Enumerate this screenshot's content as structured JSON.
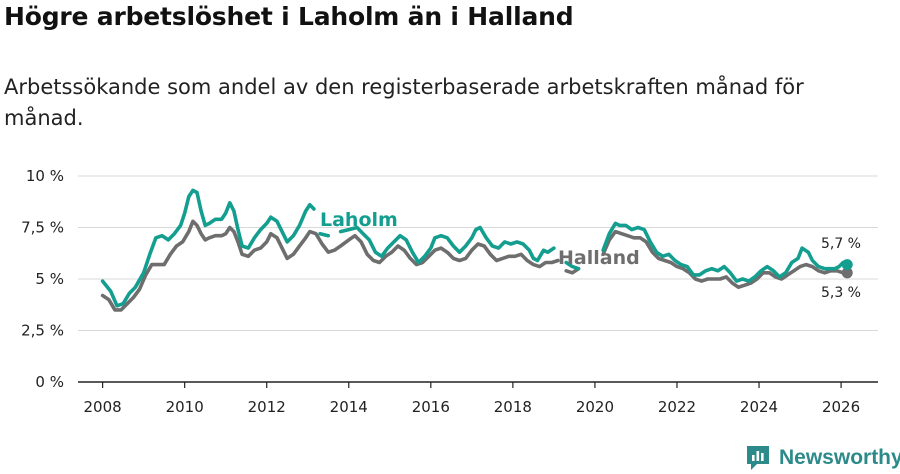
{
  "title": "Högre arbetslöshet i Laholm än i Halland",
  "subtitle": "Arbetssökande som andel av den registerbaserade arbetskraften månad för månad.",
  "brand": "Newsworthy",
  "colors": {
    "laholm": "#139e8f",
    "halland": "#6e6e6e",
    "grid": "#d9d9d9",
    "axis": "#222222",
    "brand": "#2d8a8a"
  },
  "chart_data": {
    "type": "line",
    "title": "Högre arbetslöshet i Laholm än i Halland",
    "xlabel": "",
    "ylabel": "",
    "xlim": [
      2007.4,
      2026.9
    ],
    "ylim": [
      0,
      10
    ],
    "x_ticks": [
      2008,
      2010,
      2012,
      2014,
      2016,
      2018,
      2020,
      2022,
      2024,
      2026
    ],
    "x_tick_labels": [
      "2008",
      "2010",
      "2012",
      "2014",
      "2016",
      "2018",
      "2020",
      "2022",
      "2024",
      "2026"
    ],
    "y_ticks": [
      0,
      2.5,
      5,
      7.5,
      10
    ],
    "y_tick_labels": [
      "0 %",
      "2,5 %",
      "5 %",
      "7,5 %",
      "10 %"
    ],
    "grid": true,
    "series": [
      {
        "name": "Laholm",
        "label": "Laholm",
        "points": [
          [
            2008.0,
            4.9
          ],
          [
            2008.2,
            4.4
          ],
          [
            2008.35,
            3.7
          ],
          [
            2008.5,
            3.8
          ],
          [
            2008.65,
            4.3
          ],
          [
            2008.8,
            4.6
          ],
          [
            2009.0,
            5.3
          ],
          [
            2009.15,
            6.2
          ],
          [
            2009.3,
            7.0
          ],
          [
            2009.45,
            7.1
          ],
          [
            2009.6,
            6.9
          ],
          [
            2009.75,
            7.2
          ],
          [
            2009.9,
            7.6
          ],
          [
            2010.0,
            8.2
          ],
          [
            2010.1,
            9.0
          ],
          [
            2010.2,
            9.3
          ],
          [
            2010.3,
            9.2
          ],
          [
            2010.4,
            8.3
          ],
          [
            2010.5,
            7.6
          ],
          [
            2010.6,
            7.7
          ],
          [
            2010.75,
            7.9
          ],
          [
            2010.9,
            7.9
          ],
          [
            2011.0,
            8.2
          ],
          [
            2011.1,
            8.7
          ],
          [
            2011.2,
            8.3
          ],
          [
            2011.3,
            7.4
          ],
          [
            2011.4,
            6.6
          ],
          [
            2011.55,
            6.5
          ],
          [
            2011.7,
            7.0
          ],
          [
            2011.85,
            7.4
          ],
          [
            2012.0,
            7.7
          ],
          [
            2012.1,
            8.0
          ],
          [
            2012.25,
            7.8
          ],
          [
            2012.4,
            7.2
          ],
          [
            2012.5,
            6.8
          ],
          [
            2012.65,
            7.1
          ],
          [
            2012.8,
            7.6
          ],
          [
            2012.95,
            8.3
          ],
          [
            2013.05,
            8.6
          ],
          [
            2013.15,
            8.4
          ]
        ],
        "segment2": [
          [
            2013.3,
            7.2
          ],
          [
            2013.5,
            7.1
          ]
        ],
        "segment3": [
          [
            2013.8,
            7.3
          ],
          [
            2014.0,
            7.4
          ],
          [
            2014.2,
            7.5
          ],
          [
            2014.35,
            7.2
          ],
          [
            2014.5,
            6.9
          ],
          [
            2014.65,
            6.3
          ],
          [
            2014.8,
            6.1
          ],
          [
            2014.95,
            6.5
          ],
          [
            2015.1,
            6.8
          ],
          [
            2015.25,
            7.1
          ],
          [
            2015.4,
            6.9
          ],
          [
            2015.55,
            6.3
          ],
          [
            2015.7,
            5.8
          ],
          [
            2015.85,
            6.1
          ],
          [
            2016.0,
            6.5
          ],
          [
            2016.1,
            7.0
          ],
          [
            2016.25,
            7.1
          ],
          [
            2016.4,
            7.0
          ],
          [
            2016.55,
            6.6
          ],
          [
            2016.7,
            6.3
          ],
          [
            2016.85,
            6.6
          ],
          [
            2017.0,
            7.0
          ],
          [
            2017.1,
            7.4
          ],
          [
            2017.2,
            7.5
          ],
          [
            2017.35,
            7.0
          ],
          [
            2017.5,
            6.6
          ],
          [
            2017.65,
            6.5
          ],
          [
            2017.8,
            6.8
          ],
          [
            2017.95,
            6.7
          ],
          [
            2018.1,
            6.8
          ],
          [
            2018.25,
            6.7
          ],
          [
            2018.4,
            6.4
          ],
          [
            2018.5,
            6.0
          ],
          [
            2018.6,
            5.9
          ],
          [
            2018.75,
            6.4
          ],
          [
            2018.85,
            6.3
          ],
          [
            2019.0,
            6.5
          ]
        ],
        "segment4": [
          [
            2019.3,
            5.8
          ],
          [
            2019.45,
            5.6
          ],
          [
            2019.6,
            5.5
          ]
        ],
        "segment5": [
          [
            2020.2,
            6.4
          ],
          [
            2020.35,
            7.2
          ],
          [
            2020.5,
            7.7
          ],
          [
            2020.6,
            7.6
          ],
          [
            2020.75,
            7.6
          ],
          [
            2020.9,
            7.4
          ],
          [
            2021.05,
            7.5
          ],
          [
            2021.2,
            7.4
          ],
          [
            2021.35,
            6.8
          ],
          [
            2021.5,
            6.3
          ],
          [
            2021.65,
            6.1
          ],
          [
            2021.8,
            6.2
          ],
          [
            2021.95,
            5.9
          ],
          [
            2022.1,
            5.7
          ],
          [
            2022.25,
            5.6
          ],
          [
            2022.4,
            5.2
          ],
          [
            2022.55,
            5.2
          ],
          [
            2022.7,
            5.4
          ],
          [
            2022.85,
            5.5
          ],
          [
            2023.0,
            5.4
          ],
          [
            2023.15,
            5.6
          ],
          [
            2023.3,
            5.3
          ],
          [
            2023.45,
            4.9
          ],
          [
            2023.6,
            5.0
          ],
          [
            2023.75,
            4.9
          ],
          [
            2023.9,
            5.1
          ],
          [
            2024.05,
            5.4
          ],
          [
            2024.2,
            5.6
          ],
          [
            2024.35,
            5.4
          ],
          [
            2024.5,
            5.1
          ],
          [
            2024.65,
            5.3
          ],
          [
            2024.8,
            5.8
          ],
          [
            2024.95,
            6.0
          ],
          [
            2025.05,
            6.5
          ],
          [
            2025.2,
            6.3
          ],
          [
            2025.3,
            5.9
          ],
          [
            2025.45,
            5.6
          ],
          [
            2025.6,
            5.5
          ],
          [
            2025.75,
            5.5
          ],
          [
            2025.85,
            5.5
          ],
          [
            2025.95,
            5.6
          ],
          [
            2026.05,
            5.8
          ],
          [
            2026.15,
            5.7
          ]
        ]
      },
      {
        "name": "Halland",
        "label": "Halland",
        "points": [
          [
            2008.0,
            4.2
          ],
          [
            2008.15,
            4.0
          ],
          [
            2008.3,
            3.5
          ],
          [
            2008.45,
            3.5
          ],
          [
            2008.6,
            3.8
          ],
          [
            2008.75,
            4.1
          ],
          [
            2008.9,
            4.5
          ],
          [
            2009.05,
            5.2
          ],
          [
            2009.2,
            5.7
          ],
          [
            2009.35,
            5.7
          ],
          [
            2009.5,
            5.7
          ],
          [
            2009.65,
            6.2
          ],
          [
            2009.8,
            6.6
          ],
          [
            2009.95,
            6.8
          ],
          [
            2010.1,
            7.3
          ],
          [
            2010.2,
            7.8
          ],
          [
            2010.3,
            7.6
          ],
          [
            2010.4,
            7.2
          ],
          [
            2010.5,
            6.9
          ],
          [
            2010.6,
            7.0
          ],
          [
            2010.75,
            7.1
          ],
          [
            2010.9,
            7.1
          ],
          [
            2011.0,
            7.2
          ],
          [
            2011.1,
            7.5
          ],
          [
            2011.2,
            7.3
          ],
          [
            2011.3,
            6.8
          ],
          [
            2011.4,
            6.2
          ],
          [
            2011.55,
            6.1
          ],
          [
            2011.7,
            6.4
          ],
          [
            2011.85,
            6.5
          ],
          [
            2012.0,
            6.8
          ],
          [
            2012.1,
            7.2
          ],
          [
            2012.25,
            7.0
          ],
          [
            2012.4,
            6.4
          ],
          [
            2012.5,
            6.0
          ],
          [
            2012.65,
            6.2
          ],
          [
            2012.8,
            6.6
          ],
          [
            2012.95,
            7.0
          ],
          [
            2013.05,
            7.3
          ],
          [
            2013.2,
            7.2
          ],
          [
            2013.35,
            6.7
          ],
          [
            2013.5,
            6.3
          ],
          [
            2013.65,
            6.4
          ],
          [
            2013.8,
            6.6
          ],
          [
            2014.0,
            6.9
          ],
          [
            2014.15,
            7.1
          ],
          [
            2014.3,
            6.8
          ],
          [
            2014.45,
            6.2
          ],
          [
            2014.6,
            5.9
          ],
          [
            2014.75,
            5.8
          ],
          [
            2014.9,
            6.1
          ],
          [
            2015.05,
            6.3
          ],
          [
            2015.2,
            6.6
          ],
          [
            2015.35,
            6.4
          ],
          [
            2015.5,
            6.0
          ],
          [
            2015.65,
            5.7
          ],
          [
            2015.8,
            5.8
          ],
          [
            2015.95,
            6.1
          ],
          [
            2016.1,
            6.4
          ],
          [
            2016.25,
            6.5
          ],
          [
            2016.4,
            6.3
          ],
          [
            2016.55,
            6.0
          ],
          [
            2016.7,
            5.9
          ],
          [
            2016.85,
            6.0
          ],
          [
            2017.0,
            6.4
          ],
          [
            2017.15,
            6.7
          ],
          [
            2017.3,
            6.6
          ],
          [
            2017.45,
            6.2
          ],
          [
            2017.6,
            5.9
          ],
          [
            2017.75,
            6.0
          ],
          [
            2017.9,
            6.1
          ],
          [
            2018.05,
            6.1
          ],
          [
            2018.2,
            6.2
          ],
          [
            2018.35,
            5.9
          ],
          [
            2018.5,
            5.7
          ],
          [
            2018.65,
            5.6
          ],
          [
            2018.8,
            5.8
          ],
          [
            2018.95,
            5.8
          ],
          [
            2019.1,
            5.9
          ]
        ],
        "segment2": [
          [
            2019.3,
            5.4
          ],
          [
            2019.45,
            5.3
          ],
          [
            2019.6,
            5.5
          ]
        ],
        "segment3": [
          [
            2020.2,
            6.2
          ],
          [
            2020.35,
            6.9
          ],
          [
            2020.5,
            7.3
          ],
          [
            2020.65,
            7.2
          ],
          [
            2020.8,
            7.1
          ],
          [
            2020.95,
            7.0
          ],
          [
            2021.1,
            7.0
          ],
          [
            2021.25,
            6.8
          ],
          [
            2021.4,
            6.3
          ],
          [
            2021.55,
            6.0
          ],
          [
            2021.7,
            5.9
          ],
          [
            2021.85,
            5.8
          ],
          [
            2022.0,
            5.6
          ],
          [
            2022.15,
            5.5
          ],
          [
            2022.3,
            5.3
          ],
          [
            2022.45,
            5.0
          ],
          [
            2022.6,
            4.9
          ],
          [
            2022.75,
            5.0
          ],
          [
            2022.9,
            5.0
          ],
          [
            2023.05,
            5.0
          ],
          [
            2023.2,
            5.1
          ],
          [
            2023.35,
            4.8
          ],
          [
            2023.5,
            4.6
          ],
          [
            2023.65,
            4.7
          ],
          [
            2023.8,
            4.8
          ],
          [
            2023.95,
            5.0
          ],
          [
            2024.1,
            5.3
          ],
          [
            2024.25,
            5.3
          ],
          [
            2024.4,
            5.1
          ],
          [
            2024.55,
            5.0
          ],
          [
            2024.7,
            5.2
          ],
          [
            2024.85,
            5.4
          ],
          [
            2025.0,
            5.6
          ],
          [
            2025.15,
            5.7
          ],
          [
            2025.3,
            5.6
          ],
          [
            2025.45,
            5.4
          ],
          [
            2025.6,
            5.3
          ],
          [
            2025.75,
            5.4
          ],
          [
            2025.9,
            5.4
          ],
          [
            2026.05,
            5.3
          ],
          [
            2026.15,
            5.3
          ]
        ]
      }
    ],
    "annotations": {
      "laholm_last": "5,7 %",
      "halland_last": "5,3 %"
    }
  }
}
